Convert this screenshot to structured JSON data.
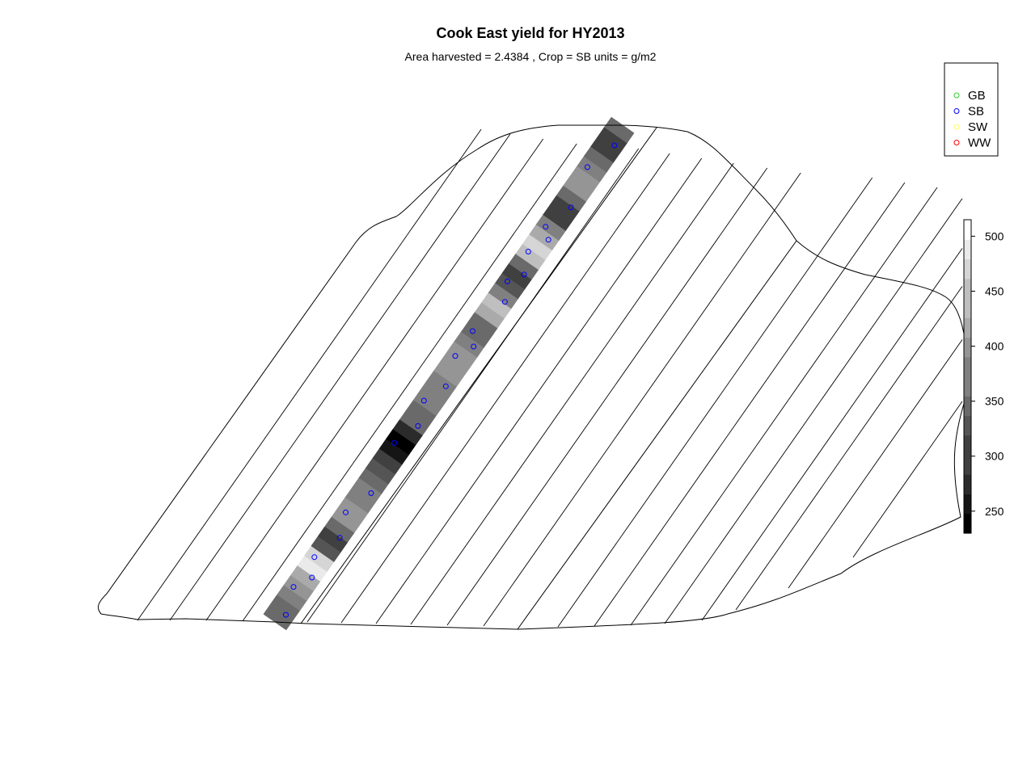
{
  "chart_data": {
    "type": "heatmap",
    "title": "Cook East yield for HY2013",
    "subtitle": "Area harvested =  2.4384 , Crop =  SB  units = g/m2",
    "legend": {
      "placement": "top-right",
      "entries": [
        {
          "label": "GB",
          "color": "#32cd32"
        },
        {
          "label": "SB",
          "color": "#0000ff"
        },
        {
          "label": "SW",
          "color": "#ffff66"
        },
        {
          "label": "WW",
          "color": "#ff0000"
        }
      ]
    },
    "colorbar": {
      "range": [
        230,
        515
      ],
      "ticks": [
        "250",
        "300",
        "350",
        "400",
        "450",
        "500"
      ],
      "tick_values": [
        250,
        300,
        350,
        400,
        450,
        500
      ],
      "low_color": "#000000",
      "high_color": "#ffffff"
    },
    "grid": false,
    "sample_points": [
      {
        "t": 0.02,
        "yield": 360
      },
      {
        "t": 0.065,
        "yield": 390
      },
      {
        "t": 0.095,
        "yield": 420
      },
      {
        "t": 0.125,
        "yield": 470
      },
      {
        "t": 0.175,
        "yield": 300
      },
      {
        "t": 0.215,
        "yield": 390
      },
      {
        "t": 0.265,
        "yield": 370
      },
      {
        "t": 0.355,
        "yield": 240
      },
      {
        "t": 0.4,
        "yield": 340
      },
      {
        "t": 0.44,
        "yield": 360
      },
      {
        "t": 0.48,
        "yield": 380
      },
      {
        "t": 0.53,
        "yield": 400
      },
      {
        "t": 0.56,
        "yield": 350
      },
      {
        "t": 0.58,
        "yield": 420
      },
      {
        "t": 0.65,
        "yield": 330
      },
      {
        "t": 0.68,
        "yield": 440
      },
      {
        "t": 0.705,
        "yield": 470
      },
      {
        "t": 0.74,
        "yield": 300
      },
      {
        "t": 0.775,
        "yield": 330
      },
      {
        "t": 0.79,
        "yield": 400
      },
      {
        "t": 0.84,
        "yield": 390
      },
      {
        "t": 0.91,
        "yield": 380
      },
      {
        "t": 0.965,
        "yield": 300
      }
    ],
    "yield_profile": [
      360,
      355,
      375,
      390,
      420,
      480,
      470,
      330,
      300,
      360,
      390,
      395,
      380,
      370,
      360,
      330,
      310,
      250,
      235,
      280,
      340,
      360,
      375,
      380,
      370,
      390,
      400,
      395,
      380,
      350,
      345,
      420,
      440,
      380,
      330,
      300,
      350,
      440,
      470,
      420,
      380,
      300,
      310,
      350,
      400,
      390,
      380,
      350,
      310,
      300,
      340
    ]
  }
}
